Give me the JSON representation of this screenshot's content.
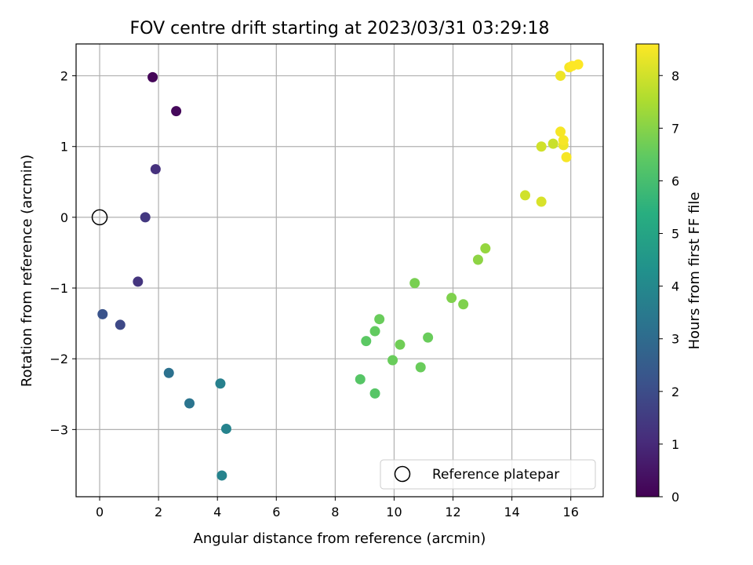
{
  "chart_data": {
    "type": "scatter",
    "title": "FOV centre drift starting at 2023/03/31 03:29:18",
    "xlabel": "Angular distance from reference (arcmin)",
    "ylabel": "Rotation from reference (arcmin)",
    "colorbar_label": "Hours from first FF file",
    "xlim": [
      -0.8,
      17.1
    ],
    "ylim": [
      -3.95,
      2.45
    ],
    "x_ticks": [
      0,
      2,
      4,
      6,
      8,
      10,
      12,
      14,
      16
    ],
    "y_ticks": [
      -3,
      -2,
      -1,
      0,
      1,
      2
    ],
    "colorbar_range": [
      0,
      8.6
    ],
    "colorbar_ticks": [
      0,
      1,
      2,
      3,
      4,
      5,
      6,
      7,
      8
    ],
    "colormap": "viridis",
    "grid": true,
    "legend": {
      "placement": "lower-right",
      "entries": [
        "Reference platepar"
      ]
    },
    "reference_point": {
      "x": 0,
      "y": 0,
      "label": "Reference platepar"
    },
    "points": [
      {
        "x": 1.8,
        "y": 1.98,
        "h": 0.1
      },
      {
        "x": 2.6,
        "y": 1.5,
        "h": 0.2
      },
      {
        "x": 1.9,
        "y": 0.68,
        "h": 1.2
      },
      {
        "x": 1.55,
        "y": 0.0,
        "h": 1.4
      },
      {
        "x": 1.3,
        "y": -0.91,
        "h": 1.3
      },
      {
        "x": 0.1,
        "y": -1.37,
        "h": 2.2
      },
      {
        "x": 0.7,
        "y": -1.52,
        "h": 1.9
      },
      {
        "x": 2.35,
        "y": -2.2,
        "h": 3.2
      },
      {
        "x": 3.05,
        "y": -2.63,
        "h": 3.3
      },
      {
        "x": 4.1,
        "y": -2.35,
        "h": 3.7
      },
      {
        "x": 4.3,
        "y": -2.99,
        "h": 3.8
      },
      {
        "x": 4.15,
        "y": -3.65,
        "h": 3.8
      },
      {
        "x": 8.85,
        "y": -2.29,
        "h": 6.3
      },
      {
        "x": 9.35,
        "y": -2.49,
        "h": 6.3
      },
      {
        "x": 9.05,
        "y": -1.75,
        "h": 6.4
      },
      {
        "x": 9.35,
        "y": -1.61,
        "h": 6.5
      },
      {
        "x": 9.5,
        "y": -1.44,
        "h": 6.6
      },
      {
        "x": 9.95,
        "y": -2.02,
        "h": 6.6
      },
      {
        "x": 10.2,
        "y": -1.8,
        "h": 6.7
      },
      {
        "x": 10.9,
        "y": -2.12,
        "h": 6.6
      },
      {
        "x": 11.15,
        "y": -1.7,
        "h": 6.6
      },
      {
        "x": 10.7,
        "y": -0.93,
        "h": 6.8
      },
      {
        "x": 11.95,
        "y": -1.14,
        "h": 6.9
      },
      {
        "x": 12.35,
        "y": -1.23,
        "h": 6.9
      },
      {
        "x": 12.85,
        "y": -0.6,
        "h": 7.1
      },
      {
        "x": 13.1,
        "y": -0.44,
        "h": 7.2
      },
      {
        "x": 14.45,
        "y": 0.31,
        "h": 8.0
      },
      {
        "x": 15.0,
        "y": 0.22,
        "h": 8.1
      },
      {
        "x": 15.0,
        "y": 1.0,
        "h": 8.0
      },
      {
        "x": 15.4,
        "y": 1.04,
        "h": 7.9
      },
      {
        "x": 15.75,
        "y": 1.02,
        "h": 8.4
      },
      {
        "x": 15.65,
        "y": 1.21,
        "h": 8.5
      },
      {
        "x": 15.75,
        "y": 1.09,
        "h": 8.5
      },
      {
        "x": 15.85,
        "y": 0.85,
        "h": 8.5
      },
      {
        "x": 15.65,
        "y": 2.0,
        "h": 8.4
      },
      {
        "x": 15.95,
        "y": 2.12,
        "h": 8.5
      },
      {
        "x": 16.05,
        "y": 2.14,
        "h": 8.6
      },
      {
        "x": 16.25,
        "y": 2.16,
        "h": 8.6
      }
    ]
  }
}
